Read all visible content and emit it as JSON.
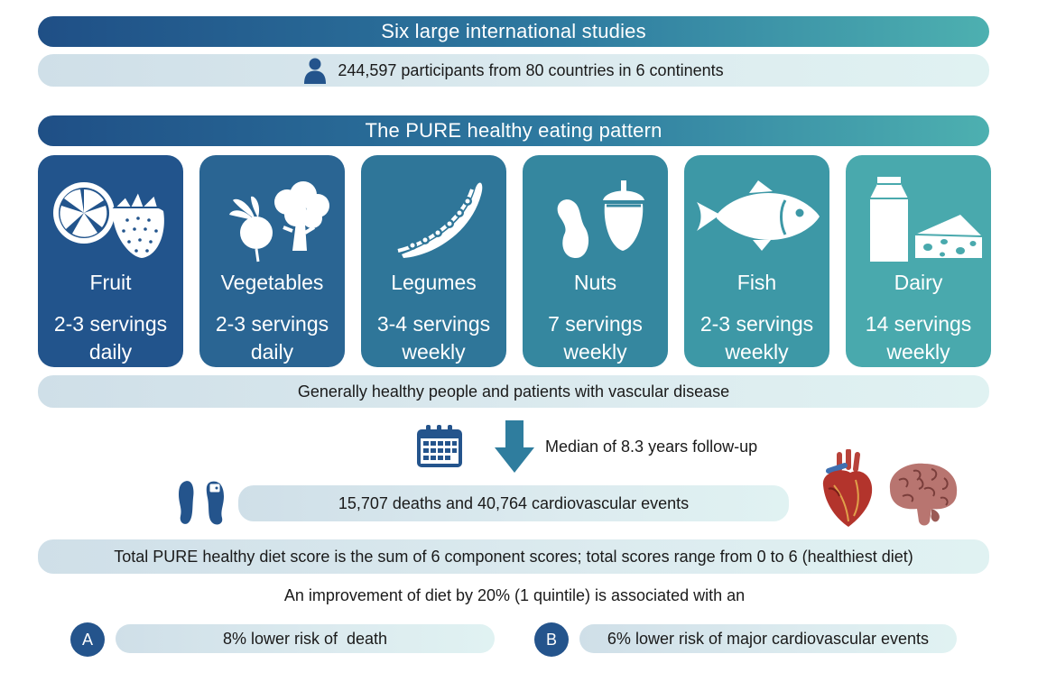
{
  "banner_studies": "Six large international studies",
  "participants": "244,597 participants from 80 countries in 6 continents",
  "banner_pattern": "The PURE healthy eating pattern",
  "foods": [
    {
      "name": "Fruit",
      "amount_line1": "2-3 servings",
      "amount_line2": "daily",
      "icon": "lemon-strawberry-icon",
      "color": "#22548c"
    },
    {
      "name": "Vegetables",
      "amount_line1": "2-3 servings",
      "amount_line2": "daily",
      "icon": "radish-broccoli-icon",
      "color": "#2a6593"
    },
    {
      "name": "Legumes",
      "amount_line1": "3-4 servings",
      "amount_line2": "weekly",
      "icon": "pea-pod-icon",
      "color": "#2f7699"
    },
    {
      "name": "Nuts",
      "amount_line1": "7 servings",
      "amount_line2": "weekly",
      "icon": "peanut-acorn-icon",
      "color": "#35879f"
    },
    {
      "name": "Fish",
      "amount_line1": "2-3 servings",
      "amount_line2": "weekly",
      "icon": "fish-icon",
      "color": "#3d98a6"
    },
    {
      "name": "Dairy",
      "amount_line1": "14 servings",
      "amount_line2": "weekly",
      "icon": "milk-cheese-icon",
      "color": "#49a9ad"
    }
  ],
  "population": "Generally healthy people and patients with vascular disease",
  "follow_up": "Median of 8.3 years follow-up",
  "events": "15,707 deaths and 40,764 cardiovascular events",
  "score_note": "Total PURE healthy diet score is the sum of 6 component scores; total scores range from 0 to 6 (healthiest diet)",
  "improvement": "An improvement of diet by 20% (1 quintile) is associated with an",
  "outcome_a": {
    "letter": "A",
    "text": "8% lower risk of  death"
  },
  "outcome_b": {
    "letter": "B",
    "text": "6% lower risk of major cardiovascular events"
  },
  "colors": {
    "dark_blue": "#1f4f86",
    "teal": "#4db0b0",
    "pill_light": "#d9e8ee"
  }
}
